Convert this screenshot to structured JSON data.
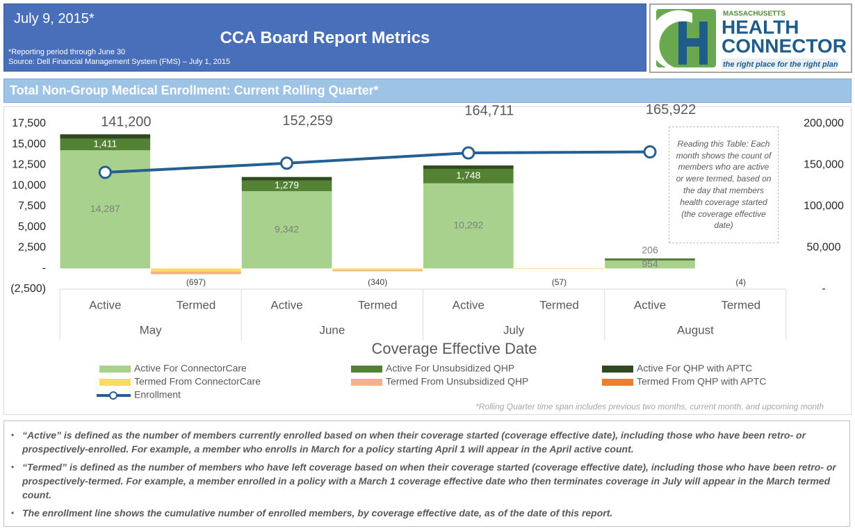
{
  "header": {
    "date": "July 9, 2015*",
    "title": "CCA Board Report Metrics",
    "note": "*Reporting period through June 30",
    "source": "Source: Dell Financial Management System (FMS) – July 1, 2015",
    "logo": {
      "top": "MASSACHUSETTS",
      "line1": "HEALTH",
      "line2": "CONNECTOR",
      "tagline": "the right place for the right plan"
    }
  },
  "section_title": "Total Non-Group Medical Enrollment: Current Rolling Quarter*",
  "chart_data": {
    "type": "bar",
    "stacked": true,
    "categories": [
      "Active",
      "Termed",
      "Active",
      "Termed",
      "Active",
      "Termed",
      "Active",
      "Termed"
    ],
    "groups": [
      "May",
      "June",
      "July",
      "August"
    ],
    "x_title": "Coverage Effective Date",
    "series": [
      {
        "name": "Active For ConnectorCare",
        "color": "#a9d18e",
        "label_color": "#7f7f7f",
        "values": [
          14287,
          null,
          9342,
          null,
          10292,
          null,
          954,
          null
        ],
        "value_labels": [
          "14,287",
          null,
          "9,342",
          null,
          "10,292",
          null,
          "954",
          null
        ]
      },
      {
        "name": "Active For Unsubsidized QHP",
        "color": "#548235",
        "label_color": "#ffffff",
        "values": [
          1411,
          null,
          1279,
          null,
          1748,
          null,
          206,
          null
        ],
        "value_labels": [
          "1,411",
          null,
          "1,279",
          null,
          "1,748",
          null,
          "206",
          null
        ]
      },
      {
        "name": "Active For QHP with APTC",
        "color": "#2f4a1f",
        "label_color": "#7f7f7f",
        "values": [
          523,
          null,
          438,
          null,
          412,
          null,
          51,
          null
        ]
      },
      {
        "name": "Termed From ConnectorCare",
        "color": "#ffd966",
        "values": [
          null,
          -380,
          null,
          -200,
          null,
          -35,
          null,
          -2
        ]
      },
      {
        "name": "Termed From Unsubsidized QHP",
        "color": "#f4b183",
        "values": [
          null,
          -297,
          null,
          -130,
          null,
          -20,
          null,
          -2
        ]
      },
      {
        "name": "Termed From QHP with APTC",
        "color": "#ed7d31",
        "values": [
          null,
          -20,
          null,
          -10,
          null,
          -2,
          null,
          0
        ]
      }
    ],
    "termed_totals": {
      "values": [
        -697,
        -340,
        -57,
        -4
      ],
      "value_labels": [
        "(697)",
        "(340)",
        "(57)",
        "(4)"
      ]
    },
    "line_series": {
      "name": "Enrollment",
      "color": "#255e91",
      "axis": "y2",
      "values": [
        141200,
        152259,
        164711,
        165922
      ],
      "value_labels": [
        "141,200",
        "152,259",
        "164,711",
        "165,922"
      ]
    },
    "ylim": [
      -2500,
      17500
    ],
    "yticks": [
      {
        "value": -2500,
        "label": "(2,500)"
      },
      {
        "value": 0,
        "label": "-"
      },
      {
        "value": 2500,
        "label": "2,500"
      },
      {
        "value": 5000,
        "label": "5,000"
      },
      {
        "value": 7500,
        "label": "7,500"
      },
      {
        "value": 10000,
        "label": "10,000"
      },
      {
        "value": 12500,
        "label": "12,500"
      },
      {
        "value": 15000,
        "label": "15,000"
      },
      {
        "value": 17500,
        "label": "17,500"
      }
    ],
    "y2lim": [
      0,
      200000
    ],
    "y2ticks": [
      {
        "value": 0,
        "label": "-"
      },
      {
        "value": 50000,
        "label": "50,000"
      },
      {
        "value": 100000,
        "label": "100,000"
      },
      {
        "value": 150000,
        "label": "150,000"
      },
      {
        "value": 200000,
        "label": "200,000"
      }
    ],
    "annotation": "Reading this Table: Each month shows the count of members who are active or were termed, based on the day that members health coverage started (the coverage effective date)",
    "footnote": "*Rolling Quarter time span includes previous two months, current month, and upcoming month"
  },
  "notes": [
    "“Active” is defined as the number of members currently enrolled based on when their coverage started (coverage effective date), including those who have been retro- or prospectively-enrolled.  For example, a member who enrolls in March for a policy starting April 1 will appear in the April active count.",
    "“Termed” is defined as the number of members who have left coverage based on when their coverage started (coverage effective date), including those who have been retro- or prospectively-termed.  For example, a member enrolled in a policy with a March 1 coverage effective date who then terminates coverage in July will appear in the March termed count.",
    "The enrollment line shows the cumulative number of enrolled members, by coverage effective date, as of the date of this report."
  ]
}
